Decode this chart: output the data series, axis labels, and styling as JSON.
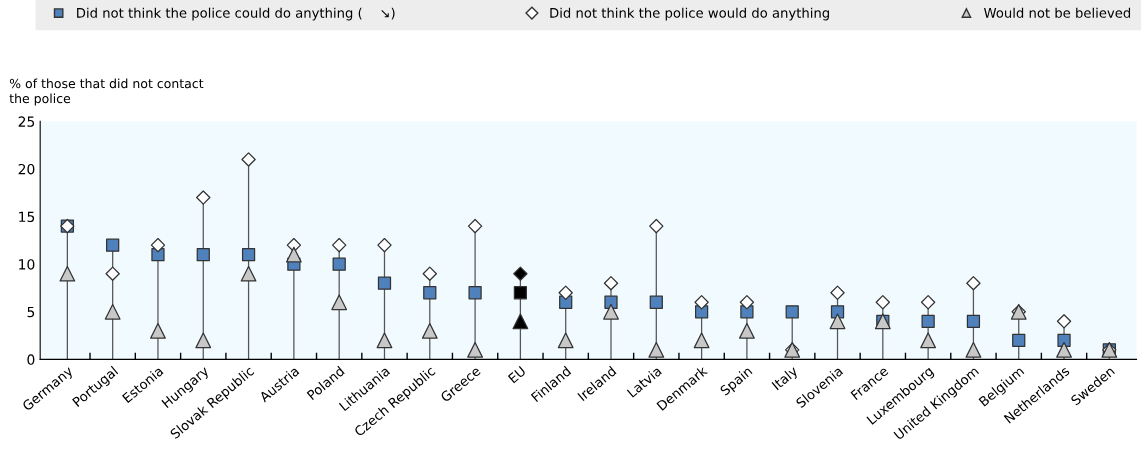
{
  "chart_data": {
    "type": "scatter",
    "ylabel": "% of those that did not contact\nthe police",
    "categories": [
      "Germany",
      "Portugal",
      "Estonia",
      "Hungary",
      "Slovak Republic",
      "Austria",
      "Poland",
      "Lithuania",
      "Czech Republic",
      "Greece",
      "EU",
      "Finland",
      "Ireland",
      "Latvia",
      "Denmark",
      "Spain",
      "Italy",
      "Slovenia",
      "France",
      "Luxembourg",
      "United Kingdom",
      "Belgium",
      "Netherlands",
      "Sweden"
    ],
    "series": [
      {
        "name": "Did not think the police could do anything (    ↘)",
        "marker": "square",
        "color": "#4f81bd",
        "colors": [
          "#4f81bd",
          "#4f81bd",
          "#4f81bd",
          "#4f81bd",
          "#4f81bd",
          "#4f81bd",
          "#4f81bd",
          "#4f81bd",
          "#4f81bd",
          "#4f81bd",
          "#000000",
          "#4f81bd",
          "#4f81bd",
          "#4f81bd",
          "#4f81bd",
          "#4f81bd",
          "#4f81bd",
          "#4f81bd",
          "#4f81bd",
          "#4f81bd",
          "#4f81bd",
          "#4f81bd",
          "#4f81bd",
          "#4f81bd"
        ],
        "values": [
          14,
          12,
          11,
          11,
          11,
          10,
          10,
          8,
          7,
          7,
          7,
          6,
          6,
          6,
          5,
          5,
          5,
          5,
          4,
          4,
          4,
          2,
          2,
          1
        ]
      },
      {
        "name": "Did not think the police would do anything",
        "marker": "diamond",
        "color": "#ffffff",
        "colors": [
          "#ffffff",
          "#ffffff",
          "#ffffff",
          "#ffffff",
          "#ffffff",
          "#ffffff",
          "#ffffff",
          "#ffffff",
          "#ffffff",
          "#ffffff",
          "#000000",
          "#ffffff",
          "#ffffff",
          "#ffffff",
          "#ffffff",
          "#ffffff",
          "#ffffff",
          "#ffffff",
          "#ffffff",
          "#ffffff",
          "#ffffff",
          "#ffffff",
          "#ffffff",
          "#ffffff"
        ],
        "values": [
          14,
          9,
          12,
          17,
          21,
          12,
          12,
          12,
          9,
          14,
          9,
          7,
          8,
          14,
          6,
          6,
          1,
          7,
          6,
          6,
          8,
          5,
          4,
          1
        ]
      },
      {
        "name": "Would not be believed",
        "marker": "triangle",
        "color": "#c8c8c8",
        "colors": [
          "#c8c8c8",
          "#c8c8c8",
          "#c8c8c8",
          "#c8c8c8",
          "#c8c8c8",
          "#c8c8c8",
          "#c8c8c8",
          "#c8c8c8",
          "#c8c8c8",
          "#c8c8c8",
          "#000000",
          "#c8c8c8",
          "#c8c8c8",
          "#c8c8c8",
          "#c8c8c8",
          "#c8c8c8",
          "#c8c8c8",
          "#c8c8c8",
          "#c8c8c8",
          "#c8c8c8",
          "#c8c8c8",
          "#c8c8c8",
          "#c8c8c8",
          "#c8c8c8"
        ],
        "values": [
          9,
          5,
          3,
          2,
          9,
          11,
          6,
          2,
          3,
          1,
          4,
          2,
          5,
          1,
          2,
          3,
          1,
          4,
          4,
          2,
          1,
          5,
          1,
          1
        ]
      }
    ],
    "ylim": [
      0,
      25
    ],
    "yticks": [
      0,
      5,
      10,
      15,
      20,
      25
    ],
    "legend": "top"
  }
}
